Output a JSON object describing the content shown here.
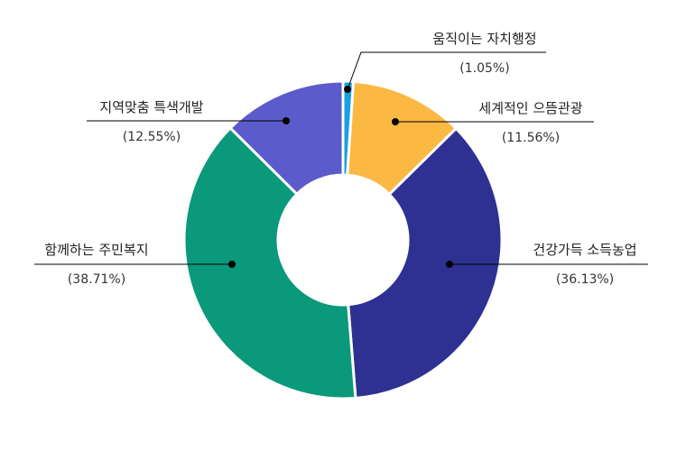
{
  "chart_data": {
    "type": "pie",
    "donut": true,
    "categories": [
      "움직이는 자치행정",
      "세계적인 으뜸관광",
      "건강가득 소득농업",
      "함께하는 주민복지",
      "지역맞춤 특색개발"
    ],
    "values": [
      1.05,
      11.56,
      36.13,
      38.71,
      12.55
    ],
    "percent_labels": [
      "(1.05%)",
      "(11.56%)",
      "(36.13%)",
      "(38.71%)",
      "(12.55%)"
    ],
    "colors": [
      "#1AA0E0",
      "#FBB843",
      "#2E3192",
      "#0A997A",
      "#5B5BCB"
    ],
    "start_angle_deg": 0,
    "direction": "clockwise",
    "legend": "none"
  }
}
